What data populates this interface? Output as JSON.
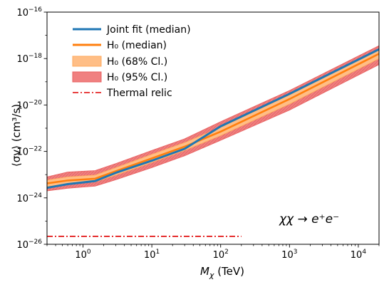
{
  "chart_data": {
    "type": "line",
    "xscale": "log",
    "yscale": "log",
    "xlabel_main": "M",
    "xlabel_sub": "χ",
    "xlabel_unit": " (TeV)",
    "ylabel": "⟨σv⟩ (cm³/s)",
    "xlim": [
      0.3,
      20000
    ],
    "ylim": [
      1e-26,
      1e-16
    ],
    "xticks": [
      {
        "value": 1,
        "base": "10",
        "exp": "0"
      },
      {
        "value": 10,
        "base": "10",
        "exp": "1"
      },
      {
        "value": 100,
        "base": "10",
        "exp": "2"
      },
      {
        "value": 1000,
        "base": "10",
        "exp": "3"
      },
      {
        "value": 10000,
        "base": "10",
        "exp": "4"
      }
    ],
    "yticks": [
      {
        "value": 1e-26,
        "base": "10",
        "exp": "−26"
      },
      {
        "value": 1e-24,
        "base": "10",
        "exp": "−24"
      },
      {
        "value": 1e-22,
        "base": "10",
        "exp": "−22"
      },
      {
        "value": 1e-20,
        "base": "10",
        "exp": "−20"
      },
      {
        "value": 1e-18,
        "base": "10",
        "exp": "−18"
      },
      {
        "value": 1e-16,
        "base": "10",
        "exp": "−16"
      }
    ],
    "annotation": "χχ → e⁺e⁻",
    "legend_position": "top-left",
    "legend": [
      {
        "label": "Joint fit (median)",
        "kind": "line",
        "color": "#1f77b4"
      },
      {
        "label": "H₀ (median)",
        "kind": "line",
        "color": "#ff7f0e"
      },
      {
        "label": "H₀ (68% Cl.)",
        "kind": "band",
        "color": "#ffbe86"
      },
      {
        "label": "H₀ (95% Cl.)",
        "kind": "band",
        "color": "#f08080"
      },
      {
        "label": "Thermal relic",
        "kind": "dashdot",
        "color": "#e00000"
      }
    ],
    "series": [
      {
        "name": "Joint fit (median)",
        "color": "#1f77b4",
        "points": [
          [
            0.3,
            2.7e-24
          ],
          [
            0.6,
            3.9e-24
          ],
          [
            1.5,
            5.3e-24
          ],
          [
            3,
            1.2e-23
          ],
          [
            10,
            4e-23
          ],
          [
            30,
            1.3e-22
          ],
          [
            100,
            1.2e-21
          ],
          [
            1000,
            3e-20
          ],
          [
            20000,
            2.5e-18
          ]
        ]
      },
      {
        "name": "H₀ (median)",
        "color": "#ff7f0e",
        "points": [
          [
            0.3,
            4.2e-24
          ],
          [
            0.6,
            5.6e-24
          ],
          [
            1.5,
            6.7e-24
          ],
          [
            3,
            1.4e-23
          ],
          [
            10,
            5e-23
          ],
          [
            30,
            1.6e-22
          ],
          [
            100,
            7.1e-22
          ],
          [
            1000,
            1.8e-20
          ],
          [
            20000,
            1.6e-18
          ]
        ]
      }
    ],
    "bands": [
      {
        "name": "H₀ (95% Cl.)",
        "color": "#f08080",
        "points": [
          [
            0.3,
            2e-24,
            8e-24
          ],
          [
            0.6,
            2.6e-24,
            1.3e-23
          ],
          [
            1.5,
            3.2e-24,
            1.5e-23
          ],
          [
            3,
            6e-24,
            3e-23
          ],
          [
            10,
            2e-23,
            1.1e-22
          ],
          [
            30,
            6.5e-23,
            3.5e-22
          ],
          [
            100,
            3e-22,
            1.9e-21
          ],
          [
            1000,
            6e-21,
            4.2e-20
          ],
          [
            20000,
            5.5e-19,
            3.6e-18
          ]
        ]
      },
      {
        "name": "H₀ (68% Cl.)",
        "color": "#ffbe86",
        "points": [
          [
            0.3,
            3e-24,
            5.8e-24
          ],
          [
            0.6,
            4e-24,
            8e-24
          ],
          [
            1.5,
            4.8e-24,
            9.5e-24
          ],
          [
            3,
            9.5e-24,
            2e-23
          ],
          [
            10,
            3.3e-23,
            7.5e-23
          ],
          [
            30,
            1.1e-22,
            2.4e-22
          ],
          [
            100,
            4.8e-22,
            1.1e-21
          ],
          [
            1000,
            1.1e-20,
            2.7e-20
          ],
          [
            20000,
            1e-18,
            2.4e-18
          ]
        ]
      }
    ],
    "thermal_relic": {
      "name": "Thermal relic",
      "color": "#e00000",
      "y": 2.2e-26,
      "x_range": [
        0.3,
        200
      ]
    }
  }
}
